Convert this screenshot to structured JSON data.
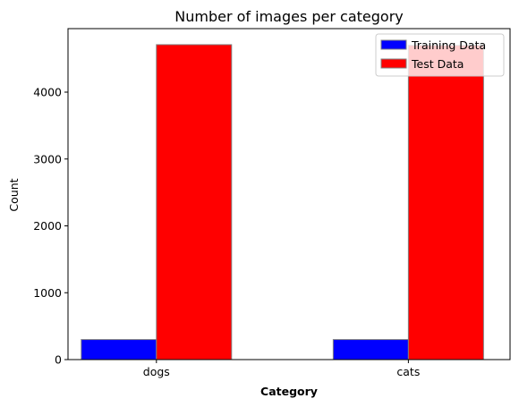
{
  "chart_data": {
    "type": "bar",
    "title": "Number of images per category",
    "xlabel": "Category",
    "ylabel": "Count",
    "categories": [
      "dogs",
      "cats"
    ],
    "series": [
      {
        "name": "Training Data",
        "values": [
          300,
          300
        ],
        "color": "#0000ff"
      },
      {
        "name": "Test Data",
        "values": [
          4710,
          4700
        ],
        "color": "#ff0000"
      }
    ],
    "bar_edge_color": "#808080",
    "ylim": [
      0,
      4950
    ],
    "yticks": [
      0,
      1000,
      2000,
      3000,
      4000
    ],
    "grid": false,
    "legend_position": "top-right"
  }
}
